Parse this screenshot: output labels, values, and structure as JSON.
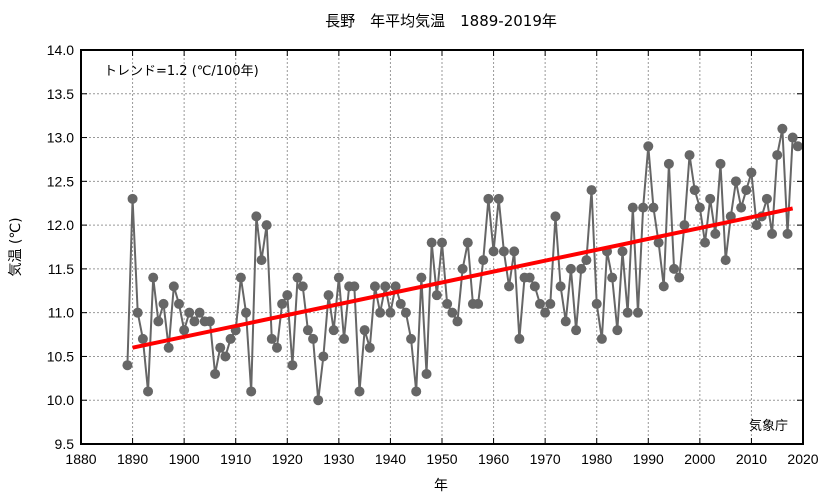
{
  "chart_data": {
    "type": "line",
    "title": "長野　年平均気温　1889-2019年",
    "xlabel": "年",
    "ylabel": "気温 (℃)",
    "xlim": [
      1880,
      2020
    ],
    "ylim": [
      9.5,
      14.0
    ],
    "grid": true,
    "x_ticks": [
      "1880",
      "1890",
      "1900",
      "1910",
      "1920",
      "1930",
      "1940",
      "1950",
      "1960",
      "1970",
      "1980",
      "1990",
      "2000",
      "2010",
      "2020"
    ],
    "y_ticks": [
      "9.5",
      "10.0",
      "10.5",
      "11.0",
      "11.5",
      "12.0",
      "12.5",
      "13.0",
      "13.5",
      "14.0"
    ],
    "annotation": "トレンド=1.2 (℃/100年)",
    "source": "気象庁",
    "series": [
      {
        "name": "年平均気温",
        "color": "#666666",
        "start_year": 1889,
        "values": [
          10.4,
          12.3,
          11.0,
          10.7,
          10.1,
          11.4,
          10.9,
          11.1,
          10.6,
          11.3,
          11.1,
          10.8,
          11.0,
          10.9,
          11.0,
          10.9,
          10.9,
          10.3,
          10.6,
          10.5,
          10.7,
          10.8,
          11.4,
          11.0,
          10.1,
          12.1,
          11.6,
          12.0,
          10.7,
          10.6,
          11.1,
          11.2,
          10.4,
          11.4,
          11.3,
          10.8,
          10.7,
          10.0,
          10.5,
          11.2,
          10.8,
          11.4,
          10.7,
          11.3,
          11.3,
          10.1,
          10.8,
          10.6,
          11.3,
          11.0,
          11.3,
          11.0,
          11.3,
          11.1,
          11.0,
          10.7,
          10.1,
          11.4,
          10.3,
          11.8,
          11.2,
          11.8,
          11.1,
          11.0,
          10.9,
          11.5,
          11.8,
          11.1,
          11.1,
          11.6,
          12.3,
          11.7,
          12.3,
          11.7,
          11.3,
          11.7,
          10.7,
          11.4,
          11.4,
          11.3,
          11.1,
          11.0,
          11.1,
          12.1,
          11.3,
          10.9,
          11.5,
          10.8,
          11.5,
          11.6,
          12.4,
          11.1,
          10.7,
          11.7,
          11.4,
          10.8,
          11.7,
          11.0,
          12.2,
          11.0,
          12.2,
          12.9,
          12.2,
          11.8,
          11.3,
          12.7,
          11.5,
          11.4,
          12.0,
          12.8,
          12.4,
          12.2,
          11.8,
          12.3,
          11.9,
          12.7,
          11.6,
          12.1,
          12.5,
          12.2,
          12.4,
          12.6,
          12.0,
          12.1,
          12.3,
          11.9,
          12.8,
          13.1,
          11.9,
          13.0,
          12.9
        ]
      },
      {
        "name": "トレンド",
        "color": "#ff0000",
        "x": [
          1890,
          2018
        ],
        "values": [
          10.6,
          12.19
        ]
      }
    ]
  }
}
